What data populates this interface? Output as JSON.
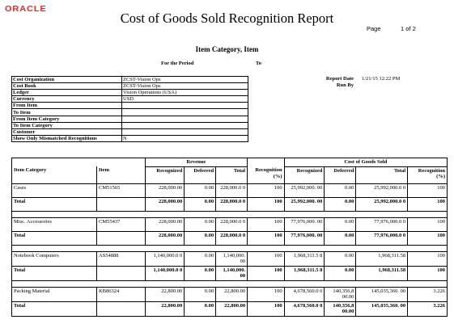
{
  "brand": {
    "logo": "ORACLE",
    "logo_color": "#e8262a"
  },
  "header": {
    "title": "Cost of Goods Sold Recognition Report",
    "page_label": "Page",
    "page_value": "1 of 2",
    "subtitle": "Item Category, Item",
    "period_label": "For the Period",
    "period_to": "To"
  },
  "report_info": {
    "report_date_label": "Report Date",
    "report_date_value": "1/21/15 12:22 PM",
    "run_by_label": "Run By"
  },
  "params": [
    {
      "label": "Cost Organization",
      "value": "ZCST-Vision Ops"
    },
    {
      "label": "Cost Book",
      "value": "ZCST-Vision Ops"
    },
    {
      "label": "Ledger",
      "value": "Vision Operations (USA)"
    },
    {
      "label": "Currency",
      "value": "USD"
    },
    {
      "label": "From Item",
      "value": ""
    },
    {
      "label": "To Item",
      "value": ""
    },
    {
      "label": "From Item Category",
      "value": ""
    },
    {
      "label": "To Item Category",
      "value": ""
    },
    {
      "label": "Customer",
      "value": ""
    },
    {
      "label": "Show Only Mismatched Recognitions",
      "value": "N"
    }
  ],
  "grid": {
    "group_revenue": "Revenue",
    "group_cogs": "Cost of Goods Sold",
    "col_item_category": "Item Category",
    "col_item": "Item",
    "col_recognized": "Recognized",
    "col_deferred": "Deferred",
    "col_total": "Total",
    "col_recognition": "Recognition (%)",
    "rows": [
      {
        "cat": "Cases",
        "item": "CM51565",
        "rev_rec": "228,000.00",
        "rev_def": "0.00",
        "rev_tot": "228,000.0 0",
        "rev_pct": "100",
        "cogs_rec": "25,992,000. 00",
        "cogs_def": "0.00",
        "cogs_tot": "25,992,000.0 0",
        "cogs_pct": "100"
      },
      {
        "cat": "Total",
        "item": "",
        "rev_rec": "228,000.00",
        "rev_def": "0.00",
        "rev_tot": "228,000.0 0",
        "rev_pct": "100",
        "cogs_rec": "25,992,000. 00",
        "cogs_def": "0.00",
        "cogs_tot": "25,992,000.0 0",
        "cogs_pct": "100"
      },
      {
        "cat": "Misc. Accessories",
        "item": "CM55437",
        "rev_rec": "228,000.00",
        "rev_def": "0.00",
        "rev_tot": "228,000.0 0",
        "rev_pct": "100",
        "cogs_rec": "77,976,000. 00",
        "cogs_def": "0.00",
        "cogs_tot": "77,976,000.0 0",
        "cogs_pct": "100"
      },
      {
        "cat": "Total",
        "item": "",
        "rev_rec": "228,000.00",
        "rev_def": "0.00",
        "rev_tot": "228,000.0 0",
        "rev_pct": "100",
        "cogs_rec": "77,976,000. 00",
        "cogs_def": "0.00",
        "cogs_tot": "77,976,000.0 0",
        "cogs_pct": "100"
      },
      {
        "cat": "Notebook Computers",
        "item": "AS54888",
        "rev_rec": "1,140,000.0 0",
        "rev_def": "0.00",
        "rev_tot": "1,140,000. 00",
        "rev_pct": "100",
        "cogs_rec": "1,968,311.5 8",
        "cogs_def": "0.00",
        "cogs_tot": "1,968,311.58",
        "cogs_pct": "100"
      },
      {
        "cat": "Total",
        "item": "",
        "rev_rec": "1,140,000.0 0",
        "rev_def": "0.00",
        "rev_tot": "1,140,000. 00",
        "rev_pct": "100",
        "cogs_rec": "1,968,311.5 8",
        "cogs_def": "0.00",
        "cogs_tot": "1,968,311.58",
        "cogs_pct": "100"
      },
      {
        "cat": "Packing Material",
        "item": "KB86324",
        "rev_rec": "22,800.00",
        "rev_def": "0.00",
        "rev_tot": "22,800.00",
        "rev_pct": "100",
        "cogs_rec": "4,678,560.0 0",
        "cogs_def": "140,356,8 00.00",
        "cogs_tot": "145,035,360. 00",
        "cogs_pct": "3.226"
      },
      {
        "cat": "Total",
        "item": "",
        "rev_rec": "22,800.00",
        "rev_def": "0.00",
        "rev_tot": "22,800.00",
        "rev_pct": "100",
        "cogs_rec": "4,678,560.0 0",
        "cogs_def": "140,356,8 00.00",
        "cogs_tot": "145,035,360. 00",
        "cogs_pct": "3.226"
      }
    ]
  }
}
